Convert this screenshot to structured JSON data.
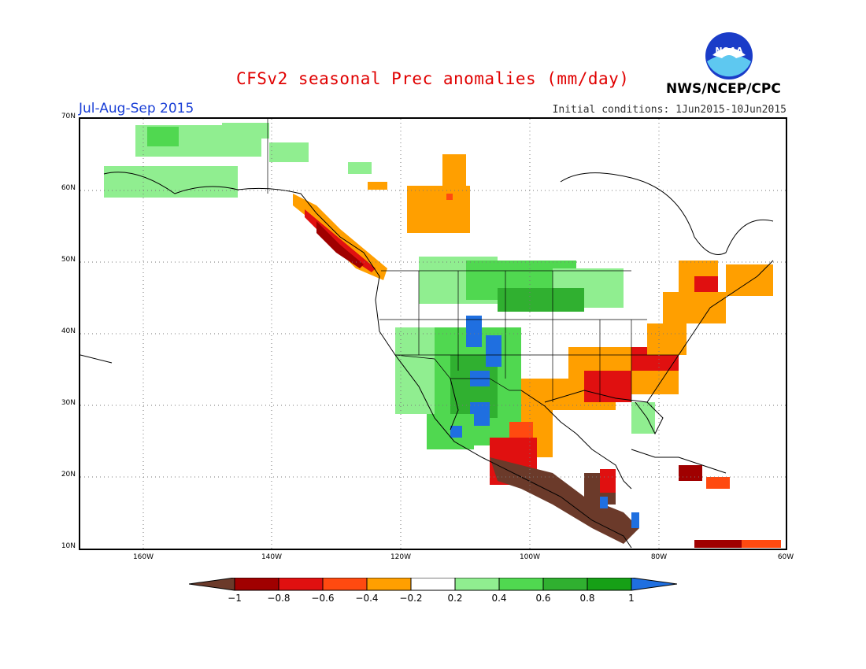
{
  "header": {
    "title": "CFSv2 seasonal Prec anomalies (mm/day)",
    "period": "Jul-Aug-Sep 2015",
    "initial_conditions": "Initial conditions: 1Jun2015-10Jun2015",
    "agency": "NWS/NCEP/CPC",
    "logo_text": "NOAA"
  },
  "map": {
    "lat_labels": [
      "70N",
      "60N",
      "50N",
      "40N",
      "30N",
      "20N",
      "10N"
    ],
    "lon_labels": [
      "160W",
      "140W",
      "120W",
      "100W",
      "80W",
      "60W"
    ]
  },
  "legend": {
    "labels": [
      "-1",
      "-0.8",
      "-0.6",
      "-0.4",
      "-0.2",
      "0.2",
      "0.4",
      "0.6",
      "0.8",
      "1"
    ],
    "colors": {
      "below_-1": "#6b3a2a",
      "-1_to_-0.8": "#a00000",
      "-0.8_to_-0.6": "#e01010",
      "-0.6_to_-0.4": "#ff4a10",
      "-0.4_to_-0.2": "#ff9f00",
      "-0.2_to_0.2": "#ffffff",
      "0.2_to_0.4": "#90ee90",
      "0.4_to_0.6": "#50d850",
      "0.6_to_0.8": "#30b030",
      "0.8_to_1": "#16a016",
      "above_1": "#1f6fe0"
    }
  }
}
